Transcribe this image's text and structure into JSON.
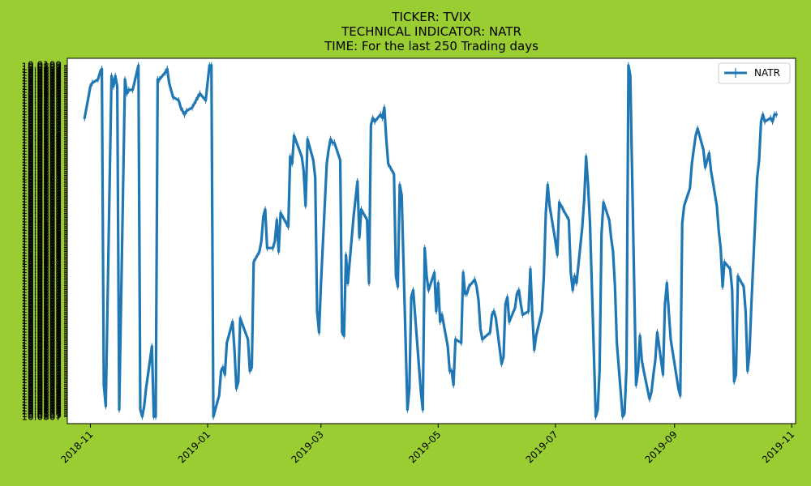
{
  "colors": {
    "background": "#9acd32",
    "plot_area": "#ffffff",
    "series_line": "#1f77b4",
    "legend_border": "#cccccc"
  },
  "chart_data": {
    "type": "line",
    "title_lines": [
      "TICKER:  TVIX",
      "TECHNICAL INDICATOR:  NATR",
      "TIME: For the last 250 Trading days"
    ],
    "legend": {
      "placement": "top-right",
      "entries": [
        "NATR"
      ]
    },
    "grid": false,
    "x_axis": {
      "type": "date",
      "range": [
        "2018-10-20",
        "2019-11-03"
      ],
      "tick_labels": [
        "2018-11",
        "2019-01",
        "2019-03",
        "2019-05",
        "2019-07",
        "2019-09",
        "2019-11"
      ],
      "tick_dates": [
        "2018-11-01",
        "2019-01-01",
        "2019-03-01",
        "2019-05-01",
        "2019-07-01",
        "2019-09-01",
        "2019-11-01"
      ],
      "tick_rotation_deg": 45
    },
    "y_axis": {
      "range": [
        -0.02,
        1.02
      ],
      "first_label": "0.0109",
      "last_label": "10.0807",
      "note": "y tick labels overlap and are illegible (categorical string axis)"
    },
    "series": [
      {
        "name": "NATR",
        "points": [
          [
            "2018-10-29",
            0.85
          ],
          [
            "2018-10-30",
            0.88
          ],
          [
            "2018-10-31",
            0.91
          ],
          [
            "2018-11-01",
            0.94
          ],
          [
            "2018-11-02",
            0.95
          ],
          [
            "2018-11-05",
            0.96
          ],
          [
            "2018-11-06",
            0.98
          ],
          [
            "2018-11-07",
            0.99
          ],
          [
            "2018-11-08",
            0.09
          ],
          [
            "2018-11-09",
            0.03
          ],
          [
            "2018-11-12",
            0.97
          ],
          [
            "2018-11-13",
            0.94
          ],
          [
            "2018-11-14",
            0.97
          ],
          [
            "2018-11-15",
            0.94
          ],
          [
            "2018-11-16",
            0.02
          ],
          [
            "2018-11-19",
            0.96
          ],
          [
            "2018-11-20",
            0.92
          ],
          [
            "2018-11-21",
            0.93
          ],
          [
            "2018-11-23",
            0.93
          ],
          [
            "2018-11-26",
            1.0
          ],
          [
            "2018-11-27",
            0.02
          ],
          [
            "2018-11-28",
            0.0
          ],
          [
            "2018-11-29",
            0.03
          ],
          [
            "2018-11-30",
            0.08
          ],
          [
            "2018-12-03",
            0.2
          ],
          [
            "2018-12-04",
            0.0
          ],
          [
            "2018-12-05",
            0.0
          ],
          [
            "2018-12-06",
            0.96
          ],
          [
            "2018-12-07",
            0.96
          ],
          [
            "2018-12-10",
            0.98
          ],
          [
            "2018-12-11",
            0.99
          ],
          [
            "2018-12-12",
            0.95
          ],
          [
            "2018-12-13",
            0.93
          ],
          [
            "2018-12-14",
            0.91
          ],
          [
            "2018-12-17",
            0.9
          ],
          [
            "2018-12-18",
            0.88
          ],
          [
            "2018-12-19",
            0.87
          ],
          [
            "2018-12-20",
            0.86
          ],
          [
            "2018-12-21",
            0.87
          ],
          [
            "2018-12-24",
            0.88
          ],
          [
            "2018-12-26",
            0.9
          ],
          [
            "2018-12-27",
            0.91
          ],
          [
            "2018-12-28",
            0.92
          ],
          [
            "2018-12-31",
            0.9
          ],
          [
            "2019-01-02",
            1.0
          ],
          [
            "2019-01-03",
            1.0
          ],
          [
            "2019-01-04",
            0.0
          ],
          [
            "2019-01-07",
            0.06
          ],
          [
            "2019-01-08",
            0.13
          ],
          [
            "2019-01-09",
            0.14
          ],
          [
            "2019-01-10",
            0.12
          ],
          [
            "2019-01-11",
            0.21
          ],
          [
            "2019-01-14",
            0.27
          ],
          [
            "2019-01-15",
            0.19
          ],
          [
            "2019-01-16",
            0.08
          ],
          [
            "2019-01-17",
            0.1
          ],
          [
            "2019-01-18",
            0.28
          ],
          [
            "2019-01-22",
            0.22
          ],
          [
            "2019-01-23",
            0.13
          ],
          [
            "2019-01-24",
            0.14
          ],
          [
            "2019-01-25",
            0.44
          ],
          [
            "2019-01-28",
            0.47
          ],
          [
            "2019-01-29",
            0.5
          ],
          [
            "2019-01-30",
            0.57
          ],
          [
            "2019-01-31",
            0.59
          ],
          [
            "2019-02-01",
            0.48
          ],
          [
            "2019-02-04",
            0.48
          ],
          [
            "2019-02-05",
            0.5
          ],
          [
            "2019-02-06",
            0.56
          ],
          [
            "2019-02-07",
            0.47
          ],
          [
            "2019-02-08",
            0.58
          ],
          [
            "2019-02-11",
            0.55
          ],
          [
            "2019-02-12",
            0.54
          ],
          [
            "2019-02-13",
            0.74
          ],
          [
            "2019-02-14",
            0.72
          ],
          [
            "2019-02-15",
            0.8
          ],
          [
            "2019-02-19",
            0.74
          ],
          [
            "2019-02-20",
            0.7
          ],
          [
            "2019-02-21",
            0.6
          ],
          [
            "2019-02-22",
            0.79
          ],
          [
            "2019-02-25",
            0.73
          ],
          [
            "2019-02-26",
            0.68
          ],
          [
            "2019-02-27",
            0.3
          ],
          [
            "2019-02-28",
            0.24
          ],
          [
            "2019-03-01",
            0.38
          ],
          [
            "2019-03-04",
            0.72
          ],
          [
            "2019-03-05",
            0.76
          ],
          [
            "2019-03-06",
            0.79
          ],
          [
            "2019-03-07",
            0.78
          ],
          [
            "2019-03-08",
            0.78
          ],
          [
            "2019-03-11",
            0.73
          ],
          [
            "2019-03-12",
            0.24
          ],
          [
            "2019-03-13",
            0.23
          ],
          [
            "2019-03-14",
            0.46
          ],
          [
            "2019-03-15",
            0.38
          ],
          [
            "2019-03-18",
            0.57
          ],
          [
            "2019-03-19",
            0.62
          ],
          [
            "2019-03-20",
            0.67
          ],
          [
            "2019-03-21",
            0.51
          ],
          [
            "2019-03-22",
            0.59
          ],
          [
            "2019-03-25",
            0.56
          ],
          [
            "2019-03-26",
            0.38
          ],
          [
            "2019-03-27",
            0.83
          ],
          [
            "2019-03-28",
            0.85
          ],
          [
            "2019-03-29",
            0.84
          ],
          [
            "2019-04-01",
            0.86
          ],
          [
            "2019-04-02",
            0.85
          ],
          [
            "2019-04-03",
            0.88
          ],
          [
            "2019-04-04",
            0.79
          ],
          [
            "2019-04-05",
            0.72
          ],
          [
            "2019-04-08",
            0.69
          ],
          [
            "2019-04-09",
            0.4
          ],
          [
            "2019-04-10",
            0.37
          ],
          [
            "2019-04-11",
            0.66
          ],
          [
            "2019-04-12",
            0.63
          ],
          [
            "2019-04-15",
            0.02
          ],
          [
            "2019-04-16",
            0.08
          ],
          [
            "2019-04-17",
            0.34
          ],
          [
            "2019-04-18",
            0.36
          ],
          [
            "2019-04-22",
            0.07
          ],
          [
            "2019-04-23",
            0.02
          ],
          [
            "2019-04-24",
            0.48
          ],
          [
            "2019-04-25",
            0.4
          ],
          [
            "2019-04-26",
            0.36
          ],
          [
            "2019-04-29",
            0.41
          ],
          [
            "2019-04-30",
            0.3
          ],
          [
            "2019-05-01",
            0.38
          ],
          [
            "2019-05-02",
            0.27
          ],
          [
            "2019-05-03",
            0.29
          ],
          [
            "2019-05-06",
            0.2
          ],
          [
            "2019-05-07",
            0.13
          ],
          [
            "2019-05-08",
            0.13
          ],
          [
            "2019-05-09",
            0.09
          ],
          [
            "2019-05-10",
            0.22
          ],
          [
            "2019-05-13",
            0.21
          ],
          [
            "2019-05-14",
            0.41
          ],
          [
            "2019-05-15",
            0.35
          ],
          [
            "2019-05-16",
            0.35
          ],
          [
            "2019-05-17",
            0.37
          ],
          [
            "2019-05-20",
            0.39
          ],
          [
            "2019-05-21",
            0.37
          ],
          [
            "2019-05-22",
            0.33
          ],
          [
            "2019-05-23",
            0.25
          ],
          [
            "2019-05-24",
            0.22
          ],
          [
            "2019-05-28",
            0.24
          ],
          [
            "2019-05-29",
            0.29
          ],
          [
            "2019-05-30",
            0.3
          ],
          [
            "2019-05-31",
            0.28
          ],
          [
            "2019-06-03",
            0.15
          ],
          [
            "2019-06-04",
            0.17
          ],
          [
            "2019-06-05",
            0.32
          ],
          [
            "2019-06-06",
            0.34
          ],
          [
            "2019-06-07",
            0.27
          ],
          [
            "2019-06-10",
            0.31
          ],
          [
            "2019-06-11",
            0.35
          ],
          [
            "2019-06-12",
            0.36
          ],
          [
            "2019-06-13",
            0.32
          ],
          [
            "2019-06-14",
            0.29
          ],
          [
            "2019-06-17",
            0.3
          ],
          [
            "2019-06-18",
            0.42
          ],
          [
            "2019-06-19",
            0.29
          ],
          [
            "2019-06-20",
            0.19
          ],
          [
            "2019-06-21",
            0.23
          ],
          [
            "2019-06-24",
            0.3
          ],
          [
            "2019-06-25",
            0.4
          ],
          [
            "2019-06-26",
            0.58
          ],
          [
            "2019-06-27",
            0.66
          ],
          [
            "2019-06-28",
            0.6
          ],
          [
            "2019-07-01",
            0.5
          ],
          [
            "2019-07-02",
            0.46
          ],
          [
            "2019-07-03",
            0.61
          ],
          [
            "2019-07-05",
            0.59
          ],
          [
            "2019-07-08",
            0.56
          ],
          [
            "2019-07-09",
            0.41
          ],
          [
            "2019-07-10",
            0.36
          ],
          [
            "2019-07-11",
            0.4
          ],
          [
            "2019-07-12",
            0.38
          ],
          [
            "2019-07-15",
            0.54
          ],
          [
            "2019-07-16",
            0.62
          ],
          [
            "2019-07-17",
            0.74
          ],
          [
            "2019-07-18",
            0.66
          ],
          [
            "2019-07-19",
            0.55
          ],
          [
            "2019-07-22",
            0.0
          ],
          [
            "2019-07-23",
            0.02
          ],
          [
            "2019-07-24",
            0.13
          ],
          [
            "2019-07-25",
            0.52
          ],
          [
            "2019-07-26",
            0.61
          ],
          [
            "2019-07-29",
            0.56
          ],
          [
            "2019-07-30",
            0.51
          ],
          [
            "2019-07-31",
            0.47
          ],
          [
            "2019-08-01",
            0.37
          ],
          [
            "2019-08-02",
            0.21
          ],
          [
            "2019-08-05",
            0.0
          ],
          [
            "2019-08-06",
            0.01
          ],
          [
            "2019-08-07",
            0.14
          ],
          [
            "2019-08-08",
            1.0
          ],
          [
            "2019-08-09",
            0.97
          ],
          [
            "2019-08-12",
            0.09
          ],
          [
            "2019-08-13",
            0.13
          ],
          [
            "2019-08-14",
            0.23
          ],
          [
            "2019-08-15",
            0.16
          ],
          [
            "2019-08-16",
            0.13
          ],
          [
            "2019-08-19",
            0.05
          ],
          [
            "2019-08-20",
            0.07
          ],
          [
            "2019-08-21",
            0.12
          ],
          [
            "2019-08-22",
            0.16
          ],
          [
            "2019-08-23",
            0.24
          ],
          [
            "2019-08-26",
            0.12
          ],
          [
            "2019-08-27",
            0.32
          ],
          [
            "2019-08-28",
            0.38
          ],
          [
            "2019-08-29",
            0.3
          ],
          [
            "2019-08-30",
            0.22
          ],
          [
            "2019-09-03",
            0.08
          ],
          [
            "2019-09-04",
            0.06
          ],
          [
            "2019-09-05",
            0.55
          ],
          [
            "2019-09-06",
            0.6
          ],
          [
            "2019-09-09",
            0.65
          ],
          [
            "2019-09-10",
            0.72
          ],
          [
            "2019-09-11",
            0.76
          ],
          [
            "2019-09-12",
            0.8
          ],
          [
            "2019-09-13",
            0.82
          ],
          [
            "2019-09-16",
            0.76
          ],
          [
            "2019-09-17",
            0.71
          ],
          [
            "2019-09-18",
            0.73
          ],
          [
            "2019-09-19",
            0.75
          ],
          [
            "2019-09-20",
            0.7
          ],
          [
            "2019-09-23",
            0.6
          ],
          [
            "2019-09-24",
            0.53
          ],
          [
            "2019-09-25",
            0.48
          ],
          [
            "2019-09-26",
            0.37
          ],
          [
            "2019-09-27",
            0.44
          ],
          [
            "2019-09-30",
            0.42
          ],
          [
            "2019-10-01",
            0.36
          ],
          [
            "2019-10-02",
            0.1
          ],
          [
            "2019-10-03",
            0.12
          ],
          [
            "2019-10-04",
            0.4
          ],
          [
            "2019-10-07",
            0.37
          ],
          [
            "2019-10-08",
            0.3
          ],
          [
            "2019-10-09",
            0.13
          ],
          [
            "2019-10-10",
            0.18
          ],
          [
            "2019-10-11",
            0.32
          ],
          [
            "2019-10-14",
            0.68
          ],
          [
            "2019-10-15",
            0.73
          ],
          [
            "2019-10-16",
            0.84
          ],
          [
            "2019-10-17",
            0.86
          ],
          [
            "2019-10-18",
            0.84
          ],
          [
            "2019-10-21",
            0.85
          ],
          [
            "2019-10-22",
            0.84
          ],
          [
            "2019-10-23",
            0.86
          ],
          [
            "2019-10-24",
            0.86
          ]
        ]
      }
    ]
  }
}
